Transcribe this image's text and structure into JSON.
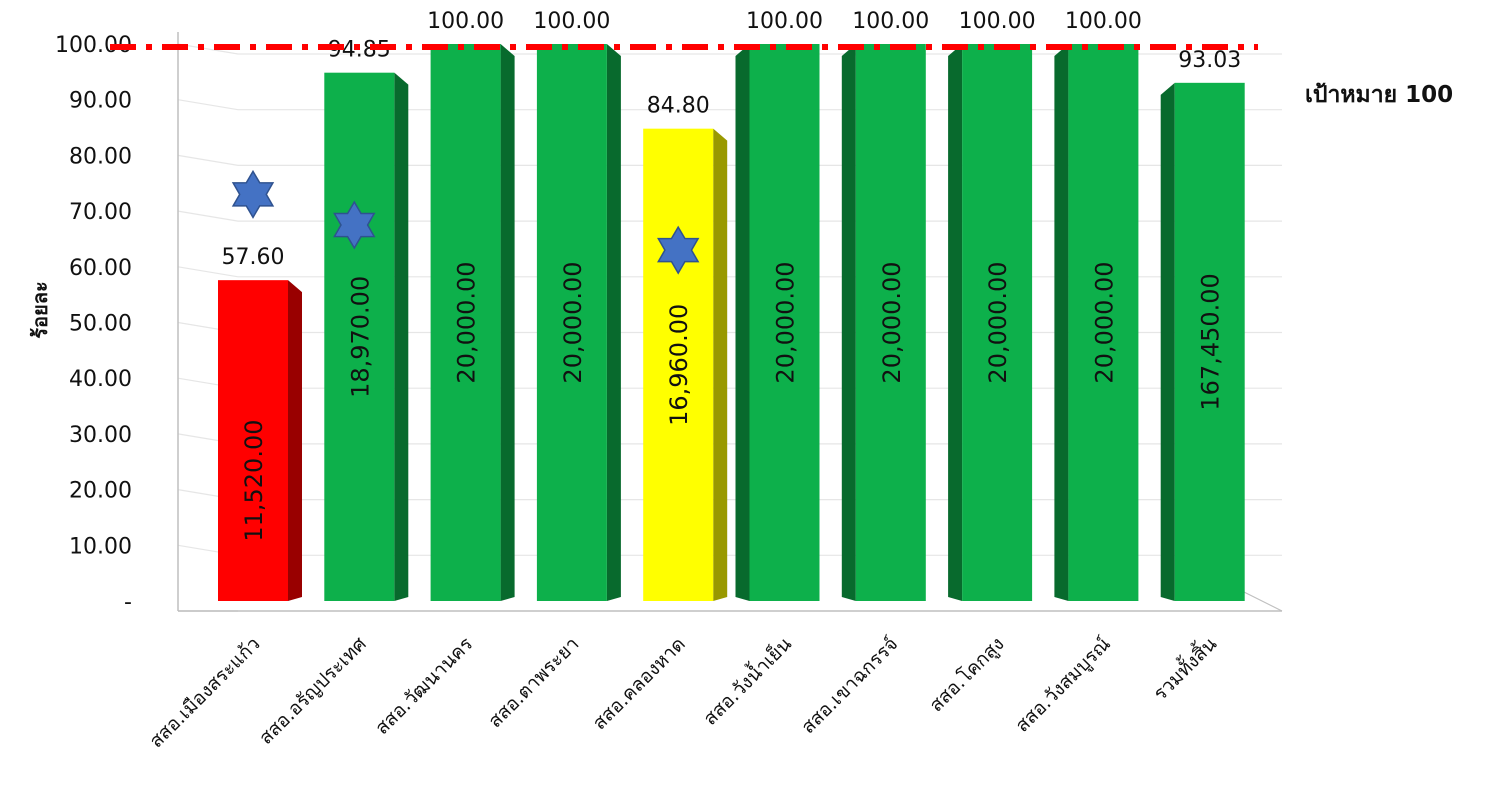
{
  "chart_data": {
    "type": "bar",
    "ylabel": "ร้อยละ",
    "ylim": [
      0,
      100
    ],
    "yticks": [
      "-",
      "10.00",
      "20.00",
      "30.00",
      "40.00",
      "50.00",
      "60.00",
      "70.00",
      "80.00",
      "90.00",
      "100.00"
    ],
    "categories": [
      "สสอ.เมืองสระแก้ว",
      "สสอ.อรัญประเทศ",
      "สสอ.วัฒนานคร",
      "สสอ.ตาพระยา",
      "สสอ.คลองหาด",
      "สสอ.วังน้ำเย็น",
      "สสอ.เขาฉกรรจ์",
      "สสอ.โคกสูง",
      "สสอ.วังสมบูรณ์",
      "รวมทั้งสิ้น"
    ],
    "values": [
      57.6,
      94.85,
      100.0,
      100.0,
      84.8,
      100.0,
      100.0,
      100.0,
      100.0,
      93.03
    ],
    "value_labels": [
      "57.60",
      "94.85",
      "100.00",
      "100.00",
      "84.80",
      "100.00",
      "100.00",
      "100.00",
      "100.00",
      "93.03"
    ],
    "inner_labels": [
      "11,520.00",
      "18,970.00",
      "20,000.00",
      "20,000.00",
      "16,960.00",
      "20,000.00",
      "20,000.00",
      "20,000.00",
      "20,000.00",
      "167,450.00"
    ],
    "bar_colors": [
      "#ff0000",
      "#0db04b",
      "#0db04b",
      "#0db04b",
      "#ffff00",
      "#0db04b",
      "#0db04b",
      "#0db04b",
      "#0db04b",
      "#0db04b"
    ],
    "star_markers": [
      {
        "category": "สสอ.เมืองสระแก้ว",
        "value": 73
      },
      {
        "category": "สสอ.อรัญประเทศ",
        "value": 67.5
      },
      {
        "category": "สสอ.คลองหาด",
        "value": 63
      }
    ],
    "target_line": {
      "value": 100,
      "label": "เป้าหมาย 100",
      "color": "#ff0000"
    },
    "star_color": "#4472c4",
    "grid": true
  }
}
